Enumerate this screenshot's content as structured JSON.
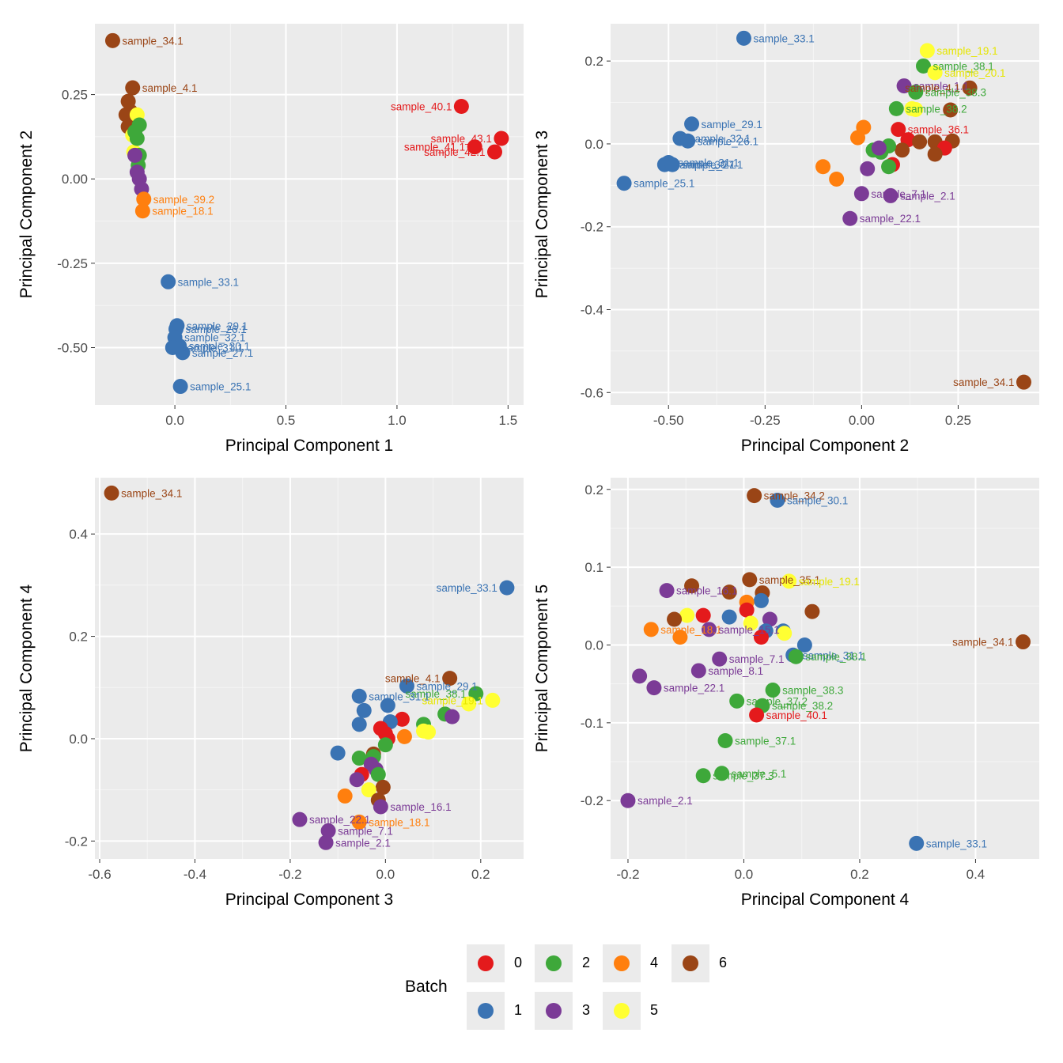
{
  "legend": {
    "title": "Batch",
    "entries": [
      {
        "label": "0",
        "color": "#e41a1c"
      },
      {
        "label": "1",
        "color": "#3a73b3"
      },
      {
        "label": "2",
        "color": "#3ea83a"
      },
      {
        "label": "3",
        "color": "#7b3b96"
      },
      {
        "label": "4",
        "color": "#ff7f0e"
      },
      {
        "label": "5",
        "color": "#ffff33"
      },
      {
        "label": "6",
        "color": "#9a4516"
      }
    ]
  },
  "chart_data": [
    {
      "type": "scatter",
      "xlabel": "Principal Component 1",
      "ylabel": "Principal Component 2",
      "xlim": [
        -0.36,
        1.57
      ],
      "ylim": [
        -0.67,
        0.46
      ],
      "xticks": [
        0.0,
        0.5,
        1.0,
        1.5
      ],
      "xtick_labels": [
        "0.0",
        "0.5",
        "1.0",
        "1.5"
      ],
      "yticks": [
        -0.5,
        -0.25,
        0.0,
        0.25
      ],
      "ytick_labels": [
        "-0.50",
        "-0.25",
        "0.00",
        "0.25"
      ],
      "points": [
        {
          "x": -0.28,
          "y": 0.41,
          "batch": 6,
          "label": "sample_34.1"
        },
        {
          "x": -0.19,
          "y": 0.27,
          "batch": 6,
          "label": "sample_4.1"
        },
        {
          "x": -0.21,
          "y": 0.23,
          "batch": 6
        },
        {
          "x": -0.22,
          "y": 0.19,
          "batch": 6
        },
        {
          "x": -0.2,
          "y": 0.2,
          "batch": 6
        },
        {
          "x": -0.21,
          "y": 0.155,
          "batch": 6
        },
        {
          "x": -0.17,
          "y": 0.19,
          "batch": 5
        },
        {
          "x": -0.19,
          "y": 0.13,
          "batch": 5
        },
        {
          "x": -0.185,
          "y": 0.08,
          "batch": 5
        },
        {
          "x": -0.17,
          "y": 0.07,
          "batch": 5
        },
        {
          "x": -0.16,
          "y": 0.16,
          "batch": 2
        },
        {
          "x": -0.18,
          "y": 0.14,
          "batch": 2
        },
        {
          "x": -0.17,
          "y": 0.12,
          "batch": 2
        },
        {
          "x": -0.16,
          "y": 0.07,
          "batch": 2
        },
        {
          "x": -0.165,
          "y": 0.04,
          "batch": 2
        },
        {
          "x": -0.17,
          "y": 0.02,
          "batch": 3
        },
        {
          "x": -0.16,
          "y": 0.0,
          "batch": 3
        },
        {
          "x": -0.18,
          "y": 0.07,
          "batch": 3
        },
        {
          "x": -0.15,
          "y": -0.03,
          "batch": 3
        },
        {
          "x": -0.14,
          "y": -0.06,
          "batch": 4,
          "label": "sample_39.2"
        },
        {
          "x": -0.145,
          "y": -0.095,
          "batch": 4,
          "label": "sample_18.1"
        },
        {
          "x": -0.03,
          "y": -0.305,
          "batch": 1,
          "label": "sample_33.1"
        },
        {
          "x": 0.01,
          "y": -0.435,
          "batch": 1,
          "label": "sample_29.1"
        },
        {
          "x": 0.005,
          "y": -0.445,
          "batch": 1,
          "label": "sample_26.1"
        },
        {
          "x": 0.0,
          "y": -0.47,
          "batch": 1,
          "label": "sample_32.1"
        },
        {
          "x": 0.02,
          "y": -0.495,
          "batch": 1,
          "label": "sample_30.1"
        },
        {
          "x": -0.01,
          "y": -0.5,
          "batch": 1,
          "label": "sample_31.1"
        },
        {
          "x": 0.035,
          "y": -0.515,
          "batch": 1,
          "label": "sample_27.1"
        },
        {
          "x": 0.025,
          "y": -0.615,
          "batch": 1,
          "label": "sample_25.1"
        },
        {
          "x": 1.29,
          "y": 0.215,
          "batch": 0,
          "label": "sample_40.1"
        },
        {
          "x": 1.47,
          "y": 0.12,
          "batch": 0,
          "label": "sample_43.1"
        },
        {
          "x": 1.35,
          "y": 0.095,
          "batch": 0,
          "label": "sample_41.1"
        },
        {
          "x": 1.44,
          "y": 0.08,
          "batch": 0,
          "label": "sample_42.1"
        }
      ]
    },
    {
      "type": "scatter",
      "xlabel": "Principal Component 2",
      "ylabel": "Principal Component 3",
      "xlim": [
        -0.65,
        0.46
      ],
      "ylim": [
        -0.63,
        0.29
      ],
      "xticks": [
        -0.5,
        -0.25,
        0.0,
        0.25
      ],
      "xtick_labels": [
        "-0.50",
        "-0.25",
        "0.00",
        "0.25"
      ],
      "yticks": [
        -0.6,
        -0.4,
        -0.2,
        0.0,
        0.2
      ],
      "ytick_labels": [
        "-0.6",
        "-0.4",
        "-0.2",
        "0.0",
        "0.2"
      ],
      "points": [
        {
          "x": -0.305,
          "y": 0.255,
          "batch": 1,
          "label": "sample_33.1"
        },
        {
          "x": -0.44,
          "y": 0.048,
          "batch": 1,
          "label": "sample_29.1"
        },
        {
          "x": -0.47,
          "y": 0.013,
          "batch": 1,
          "label": "sample_32.1"
        },
        {
          "x": -0.45,
          "y": 0.007,
          "batch": 1,
          "label": "sample_26.1"
        },
        {
          "x": -0.5,
          "y": -0.045,
          "batch": 1,
          "label": "sample_31.1"
        },
        {
          "x": -0.51,
          "y": -0.05,
          "batch": 1,
          "label": "sample_30.1"
        },
        {
          "x": -0.49,
          "y": -0.05,
          "batch": 1,
          "label": "sample_27.1"
        },
        {
          "x": -0.615,
          "y": -0.095,
          "batch": 1,
          "label": "sample_25.1"
        },
        {
          "x": 0.17,
          "y": 0.225,
          "batch": 5,
          "label": "sample_19.1"
        },
        {
          "x": 0.16,
          "y": 0.188,
          "batch": 2,
          "label": "sample_38.1"
        },
        {
          "x": 0.19,
          "y": 0.172,
          "batch": 5,
          "label": "sample_20.1"
        },
        {
          "x": 0.11,
          "y": 0.14,
          "batch": 3,
          "label": "sample_1.1"
        },
        {
          "x": 0.28,
          "y": 0.135,
          "batch": 6,
          "label": "sample_4.1"
        },
        {
          "x": 0.14,
          "y": 0.125,
          "batch": 2,
          "label": "sample_38.3"
        },
        {
          "x": 0.23,
          "y": 0.082,
          "batch": 6
        },
        {
          "x": 0.09,
          "y": 0.085,
          "batch": 2,
          "label": "sample_38.2"
        },
        {
          "x": 0.13,
          "y": 0.085,
          "batch": 5
        },
        {
          "x": 0.14,
          "y": 0.083,
          "batch": 5
        },
        {
          "x": 0.005,
          "y": 0.04,
          "batch": 4
        },
        {
          "x": 0.095,
          "y": 0.035,
          "batch": 0,
          "label": "sample_36.1"
        },
        {
          "x": -0.01,
          "y": 0.015,
          "batch": 4
        },
        {
          "x": 0.12,
          "y": 0.01,
          "batch": 0
        },
        {
          "x": 0.15,
          "y": 0.005,
          "batch": 6
        },
        {
          "x": 0.19,
          "y": 0.005,
          "batch": 6
        },
        {
          "x": 0.235,
          "y": 0.007,
          "batch": 6
        },
        {
          "x": 0.215,
          "y": -0.01,
          "batch": 0
        },
        {
          "x": 0.105,
          "y": -0.015,
          "batch": 6
        },
        {
          "x": 0.19,
          "y": -0.025,
          "batch": 6
        },
        {
          "x": 0.07,
          "y": -0.005,
          "batch": 2
        },
        {
          "x": 0.05,
          "y": -0.02,
          "batch": 2
        },
        {
          "x": 0.03,
          "y": -0.015,
          "batch": 2
        },
        {
          "x": 0.045,
          "y": -0.01,
          "batch": 3
        },
        {
          "x": 0.08,
          "y": -0.05,
          "batch": 0
        },
        {
          "x": 0.07,
          "y": -0.055,
          "batch": 2
        },
        {
          "x": 0.015,
          "y": -0.06,
          "batch": 3
        },
        {
          "x": -0.1,
          "y": -0.055,
          "batch": 4
        },
        {
          "x": -0.065,
          "y": -0.085,
          "batch": 4
        },
        {
          "x": 0.0,
          "y": -0.12,
          "batch": 3,
          "label": "sample_7.1"
        },
        {
          "x": 0.075,
          "y": -0.125,
          "batch": 3,
          "label": "sample_2.1"
        },
        {
          "x": -0.03,
          "y": -0.18,
          "batch": 3,
          "label": "sample_22.1"
        },
        {
          "x": 0.42,
          "y": -0.575,
          "batch": 6,
          "label": "sample_34.1"
        }
      ]
    },
    {
      "type": "scatter",
      "xlabel": "Principal Component 3",
      "ylabel": "Principal Component 4",
      "xlim": [
        -0.61,
        0.29
      ],
      "ylim": [
        -0.235,
        0.51
      ],
      "xticks": [
        -0.6,
        -0.4,
        -0.2,
        0.0,
        0.2
      ],
      "xtick_labels": [
        "-0.6",
        "-0.4",
        "-0.2",
        "0.0",
        "0.2"
      ],
      "yticks": [
        -0.2,
        0.0,
        0.2,
        0.4
      ],
      "ytick_labels": [
        "-0.2",
        "0.0",
        "0.2",
        "0.4"
      ],
      "points": [
        {
          "x": -0.575,
          "y": 0.48,
          "batch": 6,
          "label": "sample_34.1"
        },
        {
          "x": 0.255,
          "y": 0.295,
          "batch": 1,
          "label": "sample_33.1"
        },
        {
          "x": 0.135,
          "y": 0.118,
          "batch": 6,
          "label": "sample_4.1"
        },
        {
          "x": 0.045,
          "y": 0.103,
          "batch": 1,
          "label": "sample_29.1"
        },
        {
          "x": 0.19,
          "y": 0.088,
          "batch": 2,
          "label": "sample_38.1"
        },
        {
          "x": -0.055,
          "y": 0.083,
          "batch": 1,
          "label": "sample_31.1"
        },
        {
          "x": 0.225,
          "y": 0.075,
          "batch": 5,
          "label": "sample_19.1"
        },
        {
          "x": 0.175,
          "y": 0.068,
          "batch": 5
        },
        {
          "x": 0.005,
          "y": 0.065,
          "batch": 1
        },
        {
          "x": -0.045,
          "y": 0.055,
          "batch": 1
        },
        {
          "x": 0.125,
          "y": 0.048,
          "batch": 2
        },
        {
          "x": 0.14,
          "y": 0.043,
          "batch": 3
        },
        {
          "x": 0.035,
          "y": 0.038,
          "batch": 0
        },
        {
          "x": 0.01,
          "y": 0.033,
          "batch": 1
        },
        {
          "x": 0.08,
          "y": 0.028,
          "batch": 2
        },
        {
          "x": -0.055,
          "y": 0.028,
          "batch": 1
        },
        {
          "x": -0.01,
          "y": 0.02,
          "batch": 0
        },
        {
          "x": 0.08,
          "y": 0.015,
          "batch": 5
        },
        {
          "x": 0.09,
          "y": 0.013,
          "batch": 5
        },
        {
          "x": 0.0,
          "y": 0.01,
          "batch": 0
        },
        {
          "x": 0.04,
          "y": 0.004,
          "batch": 4
        },
        {
          "x": 0.005,
          "y": 0.0,
          "batch": 0
        },
        {
          "x": 0.0,
          "y": -0.012,
          "batch": 2
        },
        {
          "x": -0.1,
          "y": -0.028,
          "batch": 1
        },
        {
          "x": -0.025,
          "y": -0.03,
          "batch": 6
        },
        {
          "x": -0.055,
          "y": -0.038,
          "batch": 2
        },
        {
          "x": -0.025,
          "y": -0.035,
          "batch": 2
        },
        {
          "x": -0.03,
          "y": -0.05,
          "batch": 3
        },
        {
          "x": -0.02,
          "y": -0.06,
          "batch": 3
        },
        {
          "x": -0.05,
          "y": -0.07,
          "batch": 0
        },
        {
          "x": -0.015,
          "y": -0.07,
          "batch": 2
        },
        {
          "x": -0.06,
          "y": -0.08,
          "batch": 3
        },
        {
          "x": -0.005,
          "y": -0.095,
          "batch": 6
        },
        {
          "x": -0.035,
          "y": -0.1,
          "batch": 5
        },
        {
          "x": -0.085,
          "y": -0.112,
          "batch": 4
        },
        {
          "x": -0.015,
          "y": -0.12,
          "batch": 6
        },
        {
          "x": -0.01,
          "y": -0.133,
          "batch": 3,
          "label": "sample_16.1"
        },
        {
          "x": -0.18,
          "y": -0.158,
          "batch": 3,
          "label": "sample_22.1"
        },
        {
          "x": -0.055,
          "y": -0.163,
          "batch": 4,
          "label": "sample_18.1"
        },
        {
          "x": -0.12,
          "y": -0.18,
          "batch": 3,
          "label": "sample_7.1"
        },
        {
          "x": -0.125,
          "y": -0.203,
          "batch": 3,
          "label": "sample_2.1"
        }
      ]
    },
    {
      "type": "scatter",
      "xlabel": "Principal Component 4",
      "ylabel": "Principal Component 5",
      "xlim": [
        -0.23,
        0.51
      ],
      "ylim": [
        -0.275,
        0.215
      ],
      "xticks": [
        -0.2,
        0.0,
        0.2,
        0.4
      ],
      "xtick_labels": [
        "-0.2",
        "0.0",
        "0.2",
        "0.4"
      ],
      "yticks": [
        -0.2,
        -0.1,
        0.0,
        0.1,
        0.2
      ],
      "ytick_labels": [
        "-0.2",
        "-0.1",
        "0.0",
        "0.1",
        "0.2"
      ],
      "points": [
        {
          "x": 0.018,
          "y": 0.192,
          "batch": 6,
          "label": "sample_34.2"
        },
        {
          "x": 0.058,
          "y": 0.186,
          "batch": 1,
          "label": "sample_30.1"
        },
        {
          "x": 0.01,
          "y": 0.084,
          "batch": 6,
          "label": "sample_35.1"
        },
        {
          "x": 0.078,
          "y": 0.082,
          "batch": 5,
          "label": "sample_19.1"
        },
        {
          "x": -0.09,
          "y": 0.076,
          "batch": 6
        },
        {
          "x": -0.133,
          "y": 0.07,
          "batch": 3,
          "label": "sample_16.1"
        },
        {
          "x": -0.025,
          "y": 0.068,
          "batch": 6
        },
        {
          "x": 0.032,
          "y": 0.067,
          "batch": 6
        },
        {
          "x": 0.03,
          "y": 0.057,
          "batch": 1
        },
        {
          "x": 0.005,
          "y": 0.055,
          "batch": 4
        },
        {
          "x": 0.005,
          "y": 0.045,
          "batch": 0
        },
        {
          "x": 0.118,
          "y": 0.043,
          "batch": 6
        },
        {
          "x": -0.07,
          "y": 0.038,
          "batch": 0
        },
        {
          "x": -0.098,
          "y": 0.038,
          "batch": 5
        },
        {
          "x": -0.025,
          "y": 0.036,
          "batch": 1
        },
        {
          "x": 0.045,
          "y": 0.033,
          "batch": 3
        },
        {
          "x": -0.12,
          "y": 0.033,
          "batch": 6
        },
        {
          "x": 0.012,
          "y": 0.028,
          "batch": 5
        },
        {
          "x": -0.16,
          "y": 0.02,
          "batch": 4,
          "label": "sample_18.1"
        },
        {
          "x": -0.06,
          "y": 0.02,
          "batch": 3,
          "label": "sample_15.1"
        },
        {
          "x": 0.038,
          "y": 0.018,
          "batch": 1
        },
        {
          "x": 0.068,
          "y": 0.018,
          "batch": 1
        },
        {
          "x": 0.07,
          "y": 0.015,
          "batch": 5
        },
        {
          "x": 0.03,
          "y": 0.01,
          "batch": 0
        },
        {
          "x": -0.11,
          "y": 0.01,
          "batch": 4
        },
        {
          "x": 0.105,
          "y": 0.0,
          "batch": 1
        },
        {
          "x": 0.482,
          "y": 0.004,
          "batch": 6,
          "label": "sample_34.1"
        },
        {
          "x": 0.085,
          "y": -0.013,
          "batch": 1,
          "label": "sample_31.1"
        },
        {
          "x": 0.09,
          "y": -0.015,
          "batch": 2,
          "label": "sample_38.1"
        },
        {
          "x": -0.042,
          "y": -0.018,
          "batch": 3,
          "label": "sample_7.1"
        },
        {
          "x": -0.078,
          "y": -0.033,
          "batch": 3,
          "label": "sample_8.1"
        },
        {
          "x": -0.18,
          "y": -0.04,
          "batch": 3
        },
        {
          "x": -0.155,
          "y": -0.055,
          "batch": 3,
          "label": "sample_22.1"
        },
        {
          "x": 0.05,
          "y": -0.058,
          "batch": 2,
          "label": "sample_38.3"
        },
        {
          "x": -0.012,
          "y": -0.072,
          "batch": 2,
          "label": "sample_37.2"
        },
        {
          "x": 0.032,
          "y": -0.078,
          "batch": 2,
          "label": "sample_38.2"
        },
        {
          "x": 0.022,
          "y": -0.09,
          "batch": 0,
          "label": "sample_40.1"
        },
        {
          "x": -0.032,
          "y": -0.123,
          "batch": 2,
          "label": "sample_37.1"
        },
        {
          "x": -0.07,
          "y": -0.168,
          "batch": 2,
          "label": "sample_37.3"
        },
        {
          "x": -0.038,
          "y": -0.165,
          "batch": 2,
          "label": "sample_5.1"
        },
        {
          "x": -0.2,
          "y": -0.2,
          "batch": 3,
          "label": "sample_2.1"
        },
        {
          "x": 0.298,
          "y": -0.255,
          "batch": 1,
          "label": "sample_33.1"
        }
      ]
    }
  ]
}
